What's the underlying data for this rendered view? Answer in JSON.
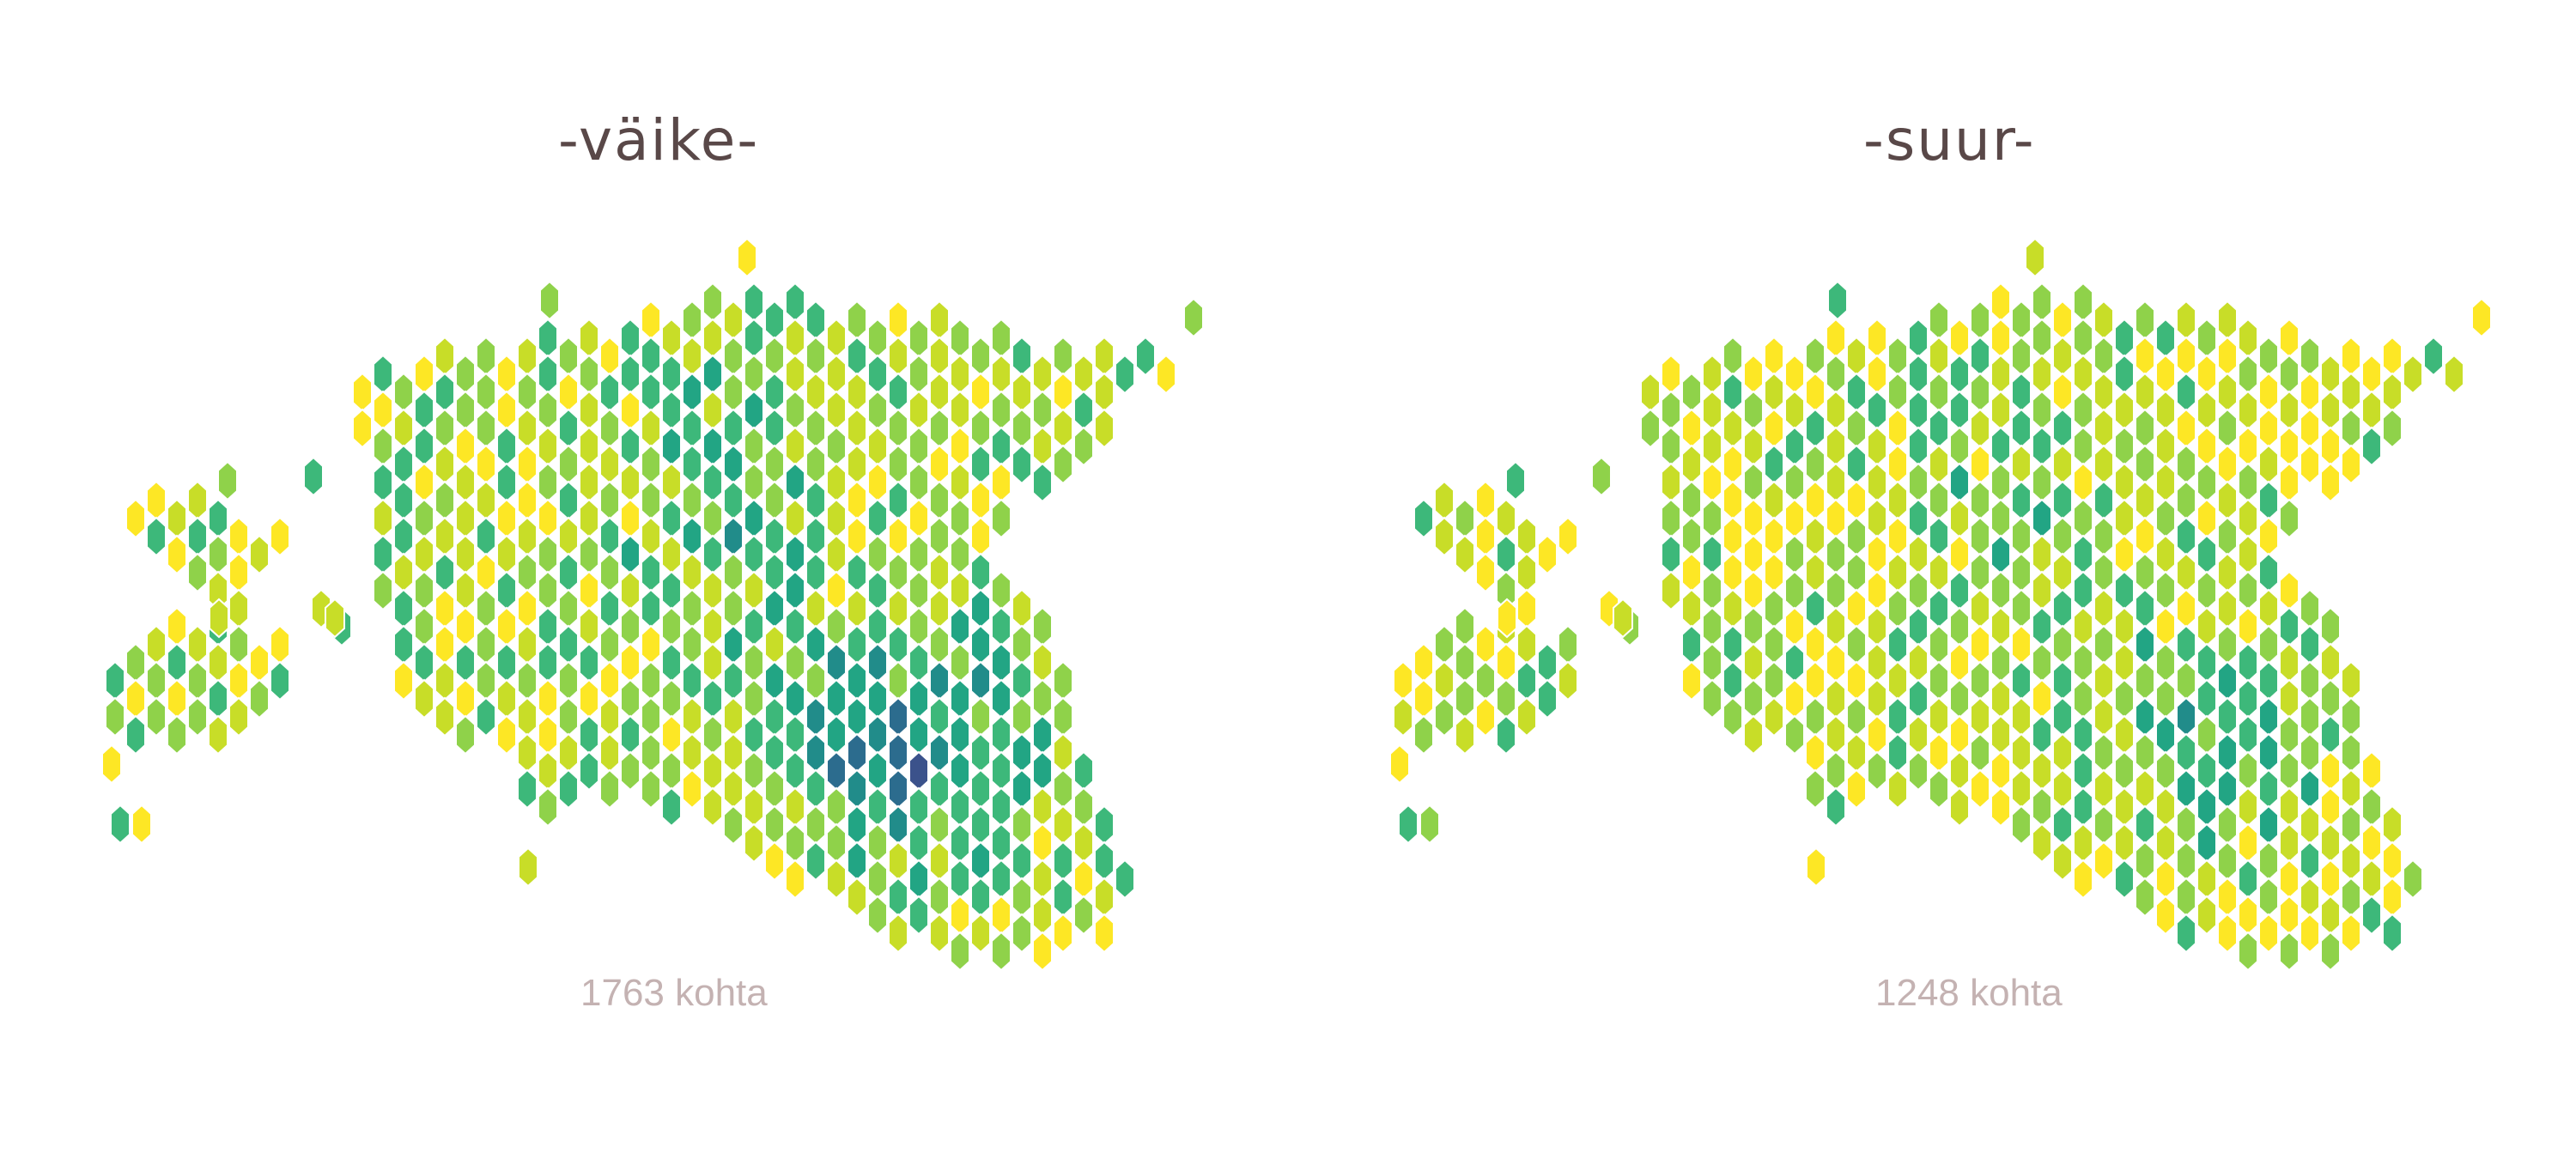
{
  "panels": [
    {
      "title": "-väike-",
      "count_label": "1763 kohta",
      "fill_pattern": "more dark teal/blue hexagons concentrated in the south-east"
    },
    {
      "title": "-suur-",
      "count_label": "1248 kohta",
      "fill_pattern": "mostly yellow and light green hexagons, darker teal mainly in the south-east"
    }
  ],
  "palette": [
    "#fde725",
    "#c8dd28",
    "#8fd24a",
    "#3db87a",
    "#22a584",
    "#218c8a",
    "#2c6c8e",
    "#3b528b"
  ],
  "map_region": "Estonia"
}
